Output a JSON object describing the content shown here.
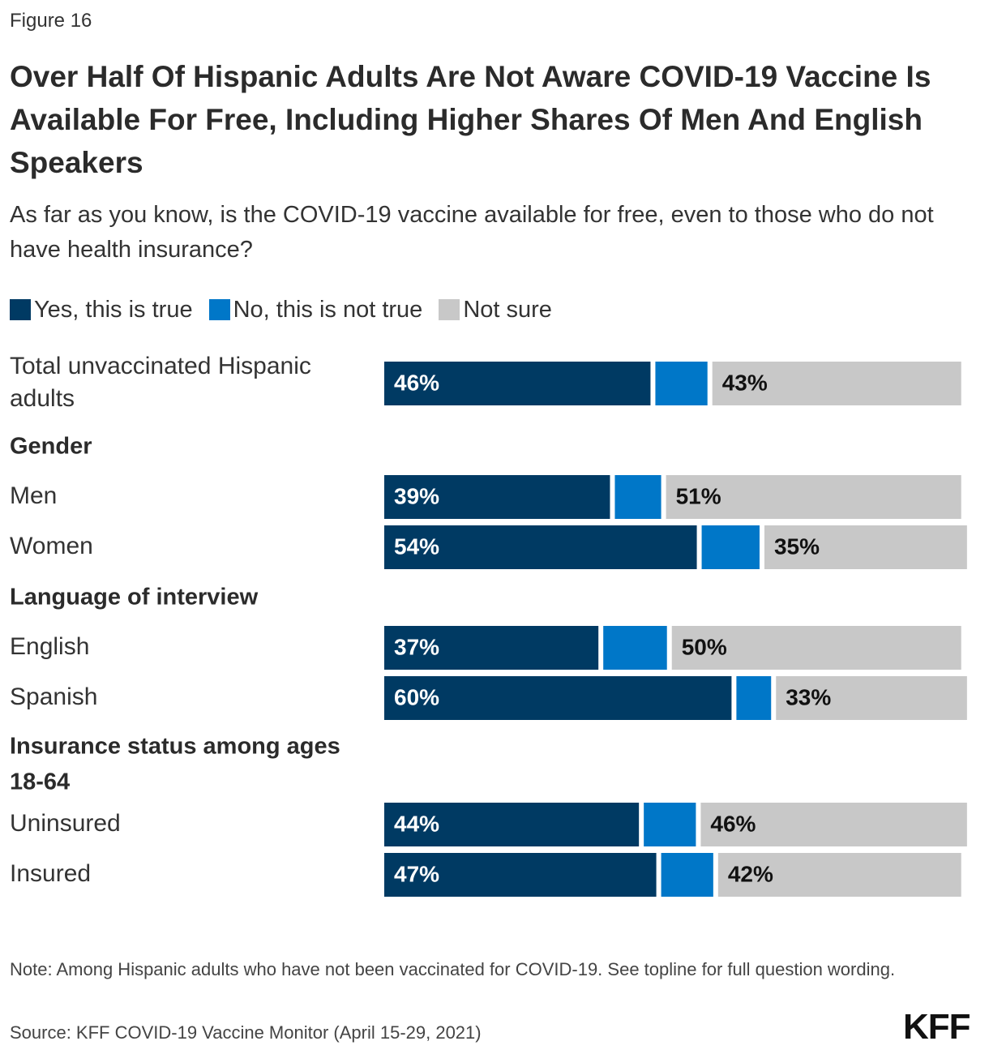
{
  "figure_label": "Figure 16",
  "title": "Over Half Of Hispanic Adults Are Not Aware COVID-19 Vaccine Is Available For Free, Including Higher Shares Of Men And English Speakers",
  "subtitle": "As far as you know, is the COVID-19 vaccine available for free, even to those who do not have health insurance?",
  "colors": {
    "yes": "#003a63",
    "no": "#0077c8",
    "not_sure": "#c8c8c8"
  },
  "chart_data": {
    "type": "bar",
    "orientation": "horizontal",
    "stacked": true,
    "legend_position": "top-left",
    "series": [
      {
        "name": "Yes, this is true",
        "color": "#003a63"
      },
      {
        "name": "No, this is not true",
        "color": "#0077c8"
      },
      {
        "name": "Not sure",
        "color": "#c8c8c8"
      }
    ],
    "rows": [
      {
        "kind": "bar",
        "label": "Total unvaccinated Hispanic adults",
        "values": [
          46,
          9,
          43
        ],
        "labels": [
          "46%",
          "",
          "43%"
        ]
      },
      {
        "kind": "header",
        "label": "Gender"
      },
      {
        "kind": "bar",
        "label": "Men",
        "values": [
          39,
          8,
          51
        ],
        "labels": [
          "39%",
          "",
          "51%"
        ]
      },
      {
        "kind": "bar",
        "label": "Women",
        "values": [
          54,
          10,
          35
        ],
        "labels": [
          "54%",
          "",
          "35%"
        ]
      },
      {
        "kind": "header",
        "label": "Language of interview"
      },
      {
        "kind": "bar",
        "label": "English",
        "values": [
          37,
          11,
          50
        ],
        "labels": [
          "37%",
          "",
          "50%"
        ]
      },
      {
        "kind": "bar",
        "label": "Spanish",
        "values": [
          60,
          6,
          33
        ],
        "labels": [
          "60%",
          "",
          "33%"
        ]
      },
      {
        "kind": "header",
        "label": "Insurance status among ages 18-64"
      },
      {
        "kind": "bar",
        "label": "Uninsured",
        "values": [
          44,
          9,
          46
        ],
        "labels": [
          "44%",
          "",
          "46%"
        ]
      },
      {
        "kind": "bar",
        "label": "Insured",
        "values": [
          47,
          9,
          42
        ],
        "labels": [
          "47%",
          "",
          "42%"
        ]
      }
    ]
  },
  "note": "Note: Among Hispanic adults who have not been vaccinated for COVID-19. See topline for full question wording.",
  "source": "Source: KFF COVID-19 Vaccine Monitor (April 15-29, 2021)",
  "logo": "KFF"
}
